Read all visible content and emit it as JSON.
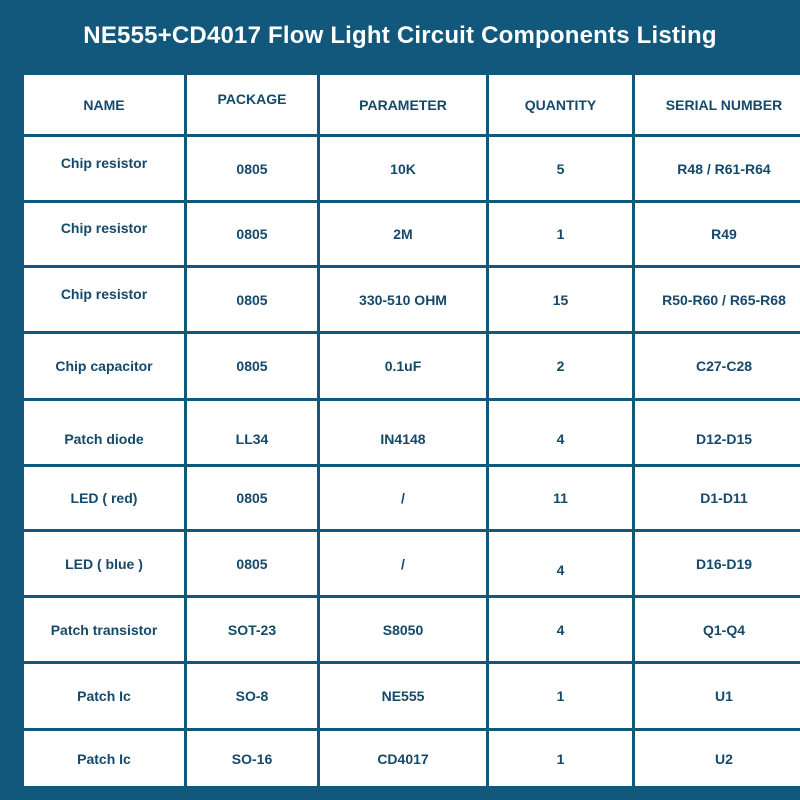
{
  "title": "NE555+CD4017 Flow Light Circuit Components Listing",
  "colors": {
    "frame": "#12587c",
    "text": "#15496a",
    "cell": "#ffffff"
  },
  "table": {
    "headers": [
      "NAME",
      "PACKAGE",
      "PARAMETER",
      "QUANTITY",
      "SERIAL NUMBER"
    ],
    "rows": [
      [
        "Chip resistor",
        "0805",
        "10K",
        "5",
        "R48 / R61-R64"
      ],
      [
        "Chip resistor",
        "0805",
        "2M",
        "1",
        "R49"
      ],
      [
        "Chip resistor",
        "0805",
        "330-510 OHM",
        "15",
        "R50-R60 / R65-R68"
      ],
      [
        "Chip capacitor",
        "0805",
        "0.1uF",
        "2",
        "C27-C28"
      ],
      [
        "Patch diode",
        "LL34",
        "IN4148",
        "4",
        "D12-D15"
      ],
      [
        "LED ( red)",
        "0805",
        "/",
        "11",
        "D1-D11"
      ],
      [
        "LED ( blue )",
        "0805",
        "/",
        "4",
        "D16-D19"
      ],
      [
        "Patch transistor",
        "SOT-23",
        "S8050",
        "4",
        "Q1-Q4"
      ],
      [
        "Patch Ic",
        "SO-8",
        "NE555",
        "1",
        "U1"
      ],
      [
        "Patch Ic",
        "SO-16",
        "CD4017",
        "1",
        "U2"
      ]
    ]
  }
}
